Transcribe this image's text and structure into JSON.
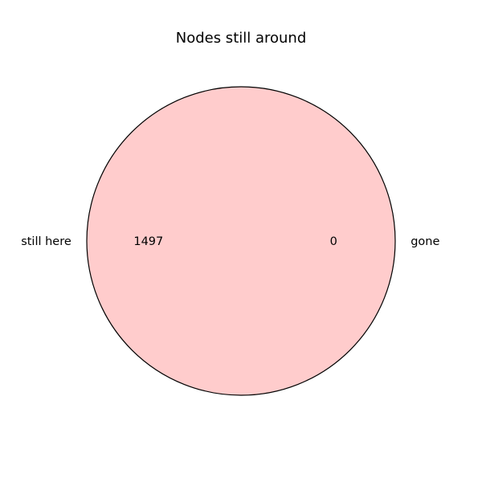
{
  "chart_data": {
    "type": "pie",
    "title": "Nodes still around",
    "slices": [
      {
        "label": "still here",
        "value": 1497,
        "value_label": "1497",
        "color": "#ffcccc"
      },
      {
        "label": "gone",
        "value": 0,
        "value_label": "0",
        "color": "#ccccff"
      }
    ],
    "edge_color": "#000000",
    "legend": "none",
    "grid": false
  }
}
